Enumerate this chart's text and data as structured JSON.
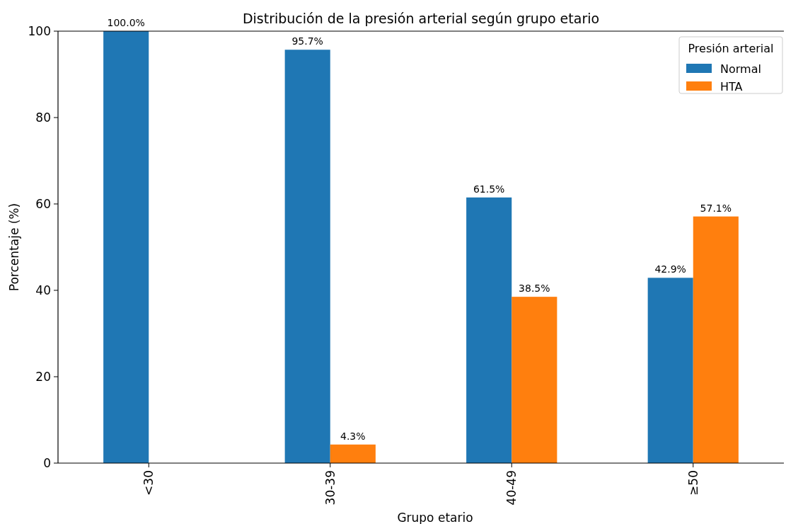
{
  "chart_data": {
    "type": "bar",
    "title": "Distribución de la presión arterial según grupo etario",
    "xlabel": "Grupo etario",
    "ylabel": "Porcentaje (%)",
    "legend_title": "Presión arterial",
    "categories": [
      "<30",
      "30-39",
      "40-49",
      "≥50"
    ],
    "series": [
      {
        "name": "Normal",
        "color": "#1f77b4",
        "values": [
          100.0,
          95.7,
          61.5,
          42.9
        ],
        "value_labels": [
          "100.0%",
          "95.7%",
          "61.5%",
          "42.9%"
        ]
      },
      {
        "name": "HTA",
        "color": "#ff7f0e",
        "values": [
          0,
          4.3,
          38.5,
          57.1
        ],
        "value_labels": [
          null,
          "4.3%",
          "38.5%",
          "57.1%"
        ]
      }
    ],
    "ylim": [
      0,
      100
    ],
    "yticks": [
      0,
      20,
      40,
      60,
      80,
      100
    ],
    "grid": false,
    "legend": "top right"
  }
}
